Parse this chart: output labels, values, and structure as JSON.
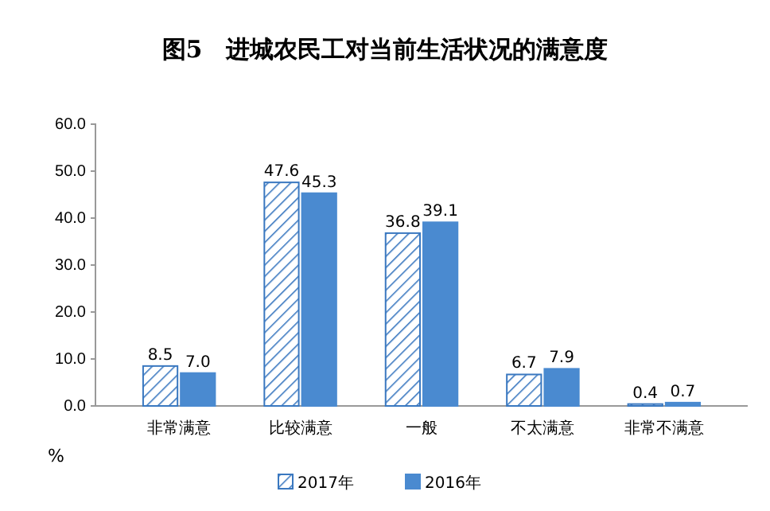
{
  "chart_data": {
    "type": "bar",
    "title": "图5　进城农民工对当前生活状况的满意度",
    "ylabel": "%",
    "categories": [
      "非常满意",
      "比较满意",
      "一般",
      "不太满意",
      "非常不满意"
    ],
    "series": [
      {
        "name": "2017年",
        "color": "#3a78c0",
        "values": [
          8.5,
          47.6,
          36.8,
          6.7,
          0.4
        ],
        "value_labels": [
          "8.5",
          "47.6",
          "36.8",
          "6.7",
          "0.4"
        ]
      },
      {
        "name": "2016年",
        "color": "#4a8ad0",
        "values": [
          7.0,
          45.3,
          39.1,
          7.9,
          0.7
        ],
        "value_labels": [
          "7.0",
          "45.3",
          "39.1",
          "7.9",
          "0.7"
        ]
      }
    ],
    "ylim": [
      0,
      60
    ],
    "yticks": [
      {
        "value": 0,
        "label": "0.0"
      },
      {
        "value": 10,
        "label": "10.0"
      },
      {
        "value": 20,
        "label": "20.0"
      },
      {
        "value": 30,
        "label": "30.0"
      },
      {
        "value": 40,
        "label": "40.0"
      },
      {
        "value": 50,
        "label": "50.0"
      },
      {
        "value": 60,
        "label": "60.0"
      }
    ],
    "grid": false,
    "legend": "bottom"
  }
}
